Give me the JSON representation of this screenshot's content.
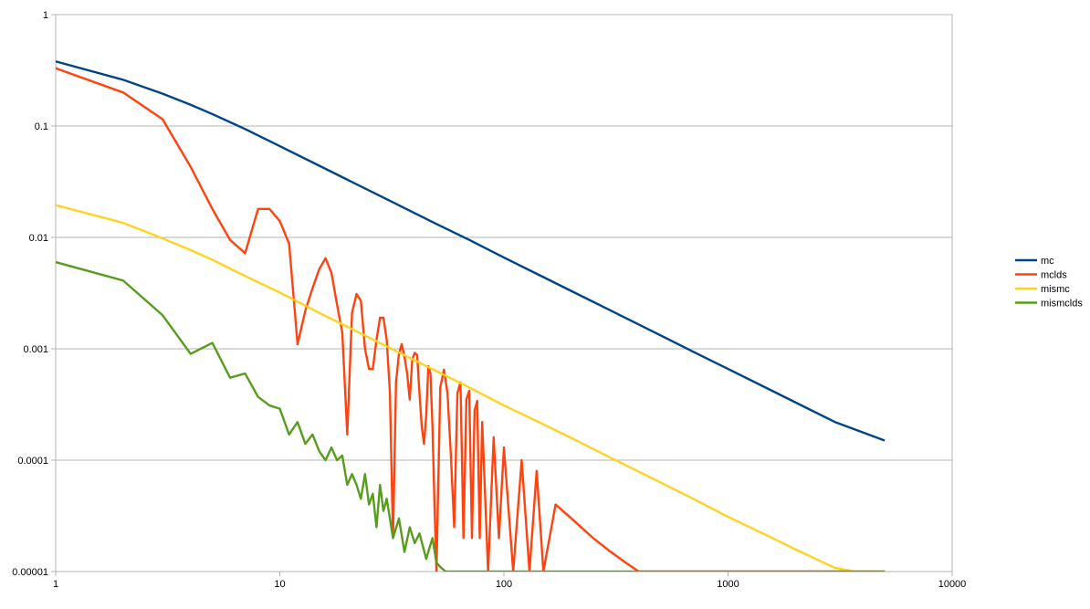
{
  "chart_data": {
    "type": "line",
    "title": "",
    "xlabel": "",
    "ylabel": "",
    "x_scale": "log",
    "y_scale": "log",
    "xlim": [
      1,
      10000
    ],
    "ylim": [
      1e-05,
      1
    ],
    "grid": "horizontal major gridlines",
    "legend_position": "right",
    "x_ticks": [
      {
        "value": 1,
        "label": "1"
      },
      {
        "value": 10,
        "label": "10"
      },
      {
        "value": 100,
        "label": "100"
      },
      {
        "value": 1000,
        "label": "1000"
      },
      {
        "value": 10000,
        "label": "10000"
      }
    ],
    "y_ticks": [
      {
        "value": 1e-05,
        "label": "0.00001"
      },
      {
        "value": 0.0001,
        "label": "0.0001"
      },
      {
        "value": 0.001,
        "label": "0.001"
      },
      {
        "value": 0.01,
        "label": "0.01"
      },
      {
        "value": 0.1,
        "label": "0.1"
      },
      {
        "value": 1,
        "label": "1"
      }
    ],
    "series": [
      {
        "name": "mc",
        "color": "#004586",
        "x": [
          1,
          2,
          3,
          4,
          5,
          7,
          10,
          15,
          20,
          30,
          50,
          70,
          100,
          150,
          200,
          300,
          500,
          700,
          1000,
          1500,
          2000,
          3000,
          5000
        ],
        "y": [
          0.38,
          0.26,
          0.195,
          0.155,
          0.128,
          0.094,
          0.066,
          0.044,
          0.033,
          0.022,
          0.0132,
          0.0095,
          0.0066,
          0.0044,
          0.0033,
          0.0022,
          0.00132,
          0.00094,
          0.00066,
          0.00044,
          0.00033,
          0.00022,
          0.00015
        ]
      },
      {
        "name": "mclds",
        "color": "#ff420e",
        "x": [
          1,
          2,
          3,
          4,
          5,
          6,
          7,
          8,
          9,
          10,
          11,
          12,
          13,
          14,
          15,
          16,
          17,
          18,
          19,
          20,
          21,
          22,
          23,
          24,
          25,
          26,
          27,
          28,
          29,
          30,
          31,
          32,
          33,
          34,
          35,
          36,
          37,
          38,
          39,
          40,
          41,
          42,
          43,
          44,
          45,
          46,
          47,
          48,
          49,
          50,
          52,
          54,
          56,
          58,
          60,
          62,
          64,
          66,
          68,
          70,
          72,
          74,
          76,
          78,
          80,
          85,
          90,
          95,
          100,
          110,
          120,
          130,
          140,
          150,
          170,
          200,
          250,
          300,
          350,
          400,
          420,
          500,
          1000,
          2000,
          5000
        ],
        "y": [
          0.33,
          0.2,
          0.115,
          0.043,
          0.018,
          0.0095,
          0.0072,
          0.018,
          0.018,
          0.014,
          0.0088,
          0.0011,
          0.0022,
          0.0035,
          0.0052,
          0.0065,
          0.0048,
          0.0025,
          0.0014,
          0.00017,
          0.0021,
          0.0031,
          0.0027,
          0.001,
          0.00066,
          0.00066,
          0.0012,
          0.0019,
          0.0019,
          0.0012,
          0.0004,
          2e-05,
          0.0005,
          0.0009,
          0.0011,
          0.00085,
          0.0006,
          0.00035,
          0.0008,
          0.00092,
          0.00088,
          0.0004,
          0.0002,
          0.00014,
          0.00025,
          0.0007,
          0.0006,
          0.0002,
          4e-05,
          1e-05,
          0.00045,
          0.00065,
          0.0004,
          0.00011,
          2.5e-05,
          0.0004,
          0.0005,
          2e-05,
          0.00035,
          0.00042,
          2e-05,
          0.00028,
          0.00034,
          2e-05,
          0.00022,
          1e-05,
          0.00016,
          2e-05,
          0.00013,
          1e-05,
          0.0001,
          1e-05,
          8e-05,
          1e-05,
          4e-05,
          3e-05,
          2e-05,
          1.5e-05,
          1.2e-05,
          1e-05,
          1e-05,
          1e-05,
          1e-05,
          1e-05,
          1e-05
        ]
      },
      {
        "name": "mismc",
        "color": "#ffd320",
        "x": [
          1,
          2,
          3,
          4,
          5,
          7,
          10,
          15,
          20,
          30,
          50,
          70,
          100,
          150,
          200,
          300,
          500,
          700,
          1000,
          1500,
          2000,
          2500,
          3000,
          3500,
          3600,
          5000
        ],
        "y": [
          0.0195,
          0.0135,
          0.0098,
          0.0077,
          0.0063,
          0.0045,
          0.0032,
          0.0021,
          0.00158,
          0.00105,
          0.00063,
          0.00045,
          0.00031,
          0.00021,
          0.000158,
          0.000105,
          6.3e-05,
          4.5e-05,
          3.1e-05,
          2.1e-05,
          1.58e-05,
          1.28e-05,
          1.08e-05,
          1.02e-05,
          1e-05,
          1e-05
        ]
      },
      {
        "name": "mismclds",
        "color": "#579d1c",
        "x": [
          1,
          2,
          3,
          4,
          5,
          6,
          7,
          8,
          9,
          10,
          11,
          12,
          13,
          14,
          15,
          16,
          17,
          18,
          19,
          20,
          21,
          22,
          23,
          24,
          25,
          26,
          27,
          28,
          29,
          30,
          32,
          34,
          36,
          38,
          40,
          42,
          45,
          48,
          50,
          52,
          55,
          60,
          70,
          100,
          1000,
          5000
        ],
        "y": [
          0.006,
          0.0041,
          0.002,
          0.0009,
          0.00113,
          0.00055,
          0.0006,
          0.00037,
          0.00031,
          0.00029,
          0.00017,
          0.00022,
          0.00014,
          0.00017,
          0.00012,
          0.0001,
          0.00013,
          0.0001,
          0.00011,
          6e-05,
          7.5e-05,
          6e-05,
          4.5e-05,
          7.5e-05,
          4e-05,
          5e-05,
          2.5e-05,
          6e-05,
          3.5e-05,
          4.5e-05,
          2e-05,
          3e-05,
          1.5e-05,
          2.5e-05,
          1.8e-05,
          2.2e-05,
          1.3e-05,
          2e-05,
          1.2e-05,
          1.1e-05,
          1e-05,
          1e-05,
          1e-05,
          1e-05,
          1e-05,
          1e-05
        ]
      }
    ]
  }
}
